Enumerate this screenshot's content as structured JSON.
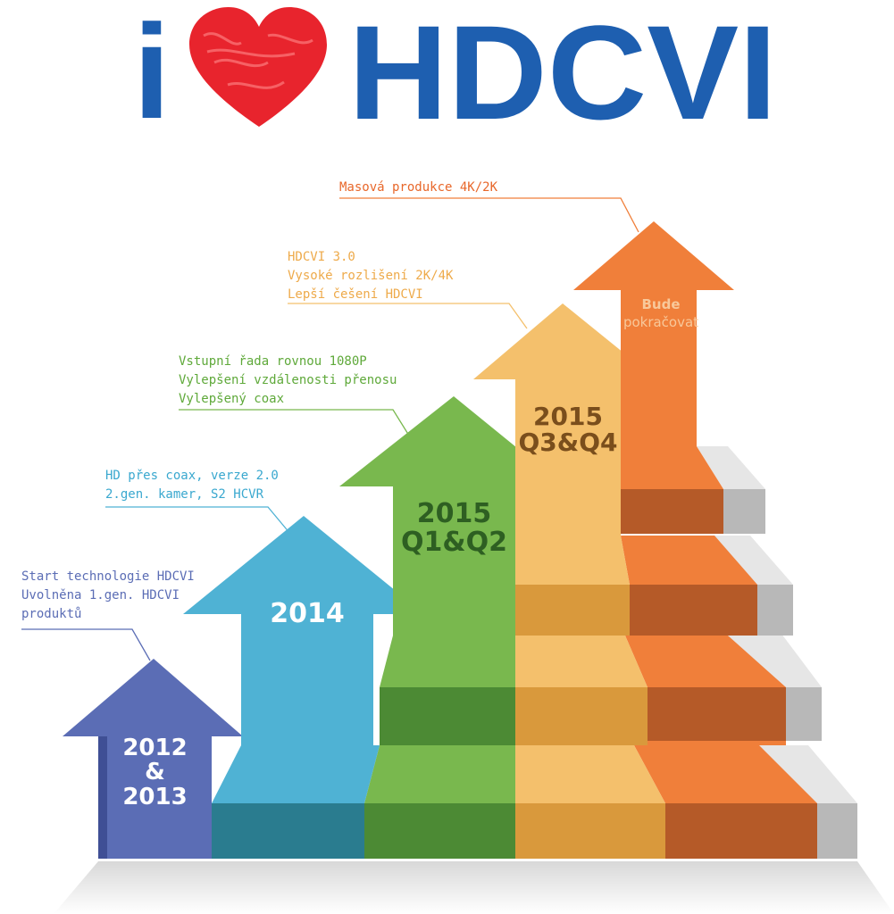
{
  "logo": {
    "prefix": "i",
    "heart": "heart-icon",
    "brand": "HDCVI",
    "colors": {
      "blue": "#1e5fb0",
      "heart": "#e8242d"
    }
  },
  "steps": [
    {
      "id": "s1",
      "period_lines": [
        "2012",
        "&",
        "2013"
      ],
      "caption_lines": [
        "Start technologie HDCVI",
        "Uvolněna 1.gen. HDCVI",
        "produktů"
      ],
      "color": "#5b6db5"
    },
    {
      "id": "s2",
      "period_lines": [
        "2014"
      ],
      "caption_lines": [
        "HD přes coax, verze 2.0",
        "2.gen. kamer, S2 HCVR"
      ],
      "color": "#4fb2d4"
    },
    {
      "id": "s3",
      "period_lines": [
        "2015",
        "Q1&Q2"
      ],
      "caption_lines": [
        "Vstupní řada rovnou 1080P",
        "Vylepšení vzdálenosti přenosu",
        "Vylepšený coax"
      ],
      "color": "#79b84e"
    },
    {
      "id": "s4",
      "period_lines": [
        "2015",
        "Q3&Q4"
      ],
      "caption_lines": [
        "HDCVI 3.0",
        "Vysoké rozlišení 2K/4K",
        "Lepší češení HDCVI"
      ],
      "color": "#f4c06c"
    },
    {
      "id": "s5",
      "period_lines": [
        "Bude",
        "pokračovat"
      ],
      "caption_lines": [
        "Masová produkce 4K/2K"
      ],
      "color": "#f07f3a"
    }
  ]
}
